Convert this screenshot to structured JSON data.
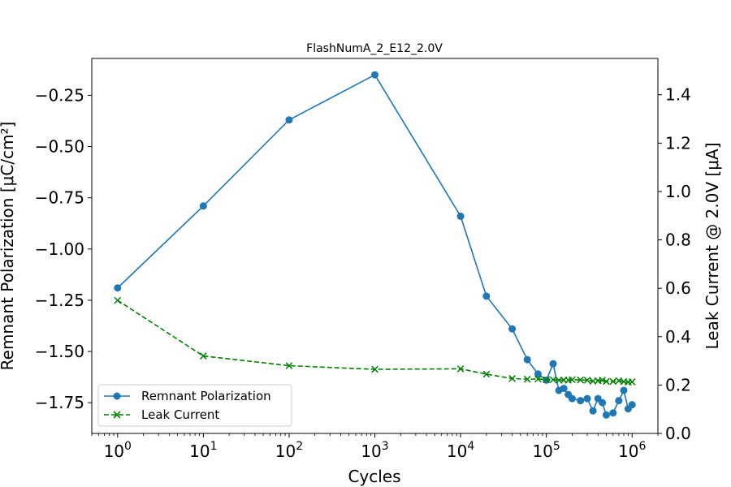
{
  "chart_data": {
    "type": "line",
    "title": "FlashNumA_2_E12_2.0V",
    "xlabel": "Cycles",
    "ylabel": "Remnant Polarization [μC/cm²]",
    "y2label": "Leak Current @ 2.0V [μA]",
    "xscale": "log",
    "xlim": [
      0.5,
      2000000
    ],
    "ylim": [
      -1.9,
      -0.07
    ],
    "y2lim": [
      0.0,
      1.55
    ],
    "xticks": [
      {
        "value": 1,
        "base": "10",
        "exp": "0"
      },
      {
        "value": 10,
        "base": "10",
        "exp": "1"
      },
      {
        "value": 100,
        "base": "10",
        "exp": "2"
      },
      {
        "value": 1000,
        "base": "10",
        "exp": "3"
      },
      {
        "value": 10000,
        "base": "10",
        "exp": "4"
      },
      {
        "value": 100000,
        "base": "10",
        "exp": "5"
      },
      {
        "value": 1000000,
        "base": "10",
        "exp": "6"
      }
    ],
    "yticks": [
      {
        "value": -0.25,
        "label": "−0.25"
      },
      {
        "value": -0.5,
        "label": "−0.50"
      },
      {
        "value": -0.75,
        "label": "−0.75"
      },
      {
        "value": -1.0,
        "label": "−1.00"
      },
      {
        "value": -1.25,
        "label": "−1.25"
      },
      {
        "value": -1.5,
        "label": "−1.50"
      },
      {
        "value": -1.75,
        "label": "−1.75"
      }
    ],
    "y2ticks": [
      {
        "value": 0.0,
        "label": "0.0"
      },
      {
        "value": 0.2,
        "label": "0.2"
      },
      {
        "value": 0.4,
        "label": "0.4"
      },
      {
        "value": 0.6,
        "label": "0.6"
      },
      {
        "value": 0.8,
        "label": "0.8"
      },
      {
        "value": 1.0,
        "label": "1.0"
      },
      {
        "value": 1.2,
        "label": "1.2"
      },
      {
        "value": 1.4,
        "label": "1.4"
      }
    ],
    "grid": false,
    "legend_position": "lower-left",
    "series": [
      {
        "name": "Remnant Polarization",
        "axis": "left",
        "color": "#1f77b4",
        "line_style": "solid",
        "marker": "circle",
        "x": [
          1,
          10,
          100,
          1000,
          10000,
          20000,
          40000,
          60000,
          80000,
          100000,
          120000,
          140000,
          160000,
          180000,
          200000,
          250000,
          300000,
          350000,
          400000,
          450000,
          500000,
          600000,
          700000,
          800000,
          900000,
          1000000
        ],
        "y": [
          -1.19,
          -0.79,
          -0.37,
          -0.15,
          -0.84,
          -1.23,
          -1.39,
          -1.54,
          -1.61,
          -1.64,
          -1.56,
          -1.69,
          -1.68,
          -1.71,
          -1.73,
          -1.74,
          -1.73,
          -1.79,
          -1.73,
          -1.75,
          -1.81,
          -1.8,
          -1.74,
          -1.69,
          -1.78,
          -1.76
        ]
      },
      {
        "name": "Leak Current",
        "axis": "right",
        "color": "#008000",
        "line_style": "dashed",
        "marker": "x",
        "x": [
          1,
          10,
          100,
          1000,
          10000,
          20000,
          40000,
          60000,
          80000,
          100000,
          120000,
          140000,
          160000,
          180000,
          200000,
          250000,
          300000,
          350000,
          400000,
          450000,
          500000,
          600000,
          700000,
          800000,
          900000,
          1000000
        ],
        "y": [
          0.55,
          0.32,
          0.28,
          0.265,
          0.267,
          0.245,
          0.227,
          0.224,
          0.225,
          0.222,
          0.222,
          0.22,
          0.221,
          0.22,
          0.222,
          0.221,
          0.22,
          0.216,
          0.218,
          0.22,
          0.215,
          0.215,
          0.218,
          0.214,
          0.212,
          0.213
        ]
      }
    ]
  }
}
